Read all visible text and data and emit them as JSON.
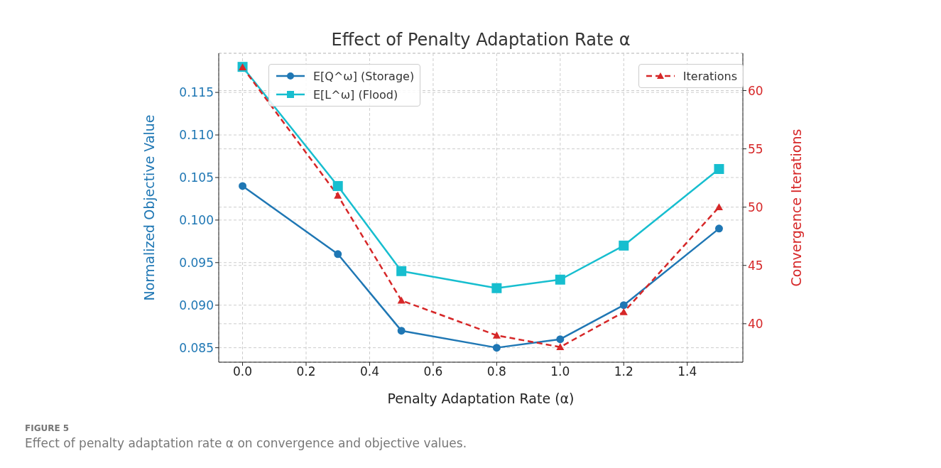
{
  "chart_data": {
    "type": "line",
    "title": "Effect of Penalty Adaptation Rate α",
    "xlabel": "Penalty Adaptation Rate (α)",
    "ylabel": "Normalized Objective Value",
    "y2label": "Convergence Iterations",
    "x": [
      0.0,
      0.3,
      0.5,
      0.8,
      1.0,
      1.2,
      1.5
    ],
    "series": [
      {
        "name": "E[Q^ω] (Storage)",
        "color": "#1f77b4",
        "marker": "circle",
        "line_style": "solid",
        "values": [
          0.104,
          0.096,
          0.087,
          0.085,
          0.086,
          0.09,
          0.099
        ]
      },
      {
        "name": "E[L^ω] (Flood)",
        "color": "#17becf",
        "marker": "square",
        "line_style": "solid",
        "values": [
          0.118,
          0.104,
          0.094,
          0.092,
          0.093,
          0.097,
          0.106
        ]
      },
      {
        "name": "Iterations",
        "color": "#d62728",
        "marker": "triangle",
        "line_style": "dashed",
        "axis": "y2",
        "values": [
          62,
          51,
          42,
          39,
          38,
          41,
          50
        ]
      }
    ],
    "xlim": [
      -0.075,
      1.575
    ],
    "xticks": [
      {
        "value": 0,
        "label": "0.0"
      },
      0.2,
      0.4,
      0.6,
      0.8,
      {
        "value": 1,
        "label": "1.0"
      },
      1.2,
      1.4
    ],
    "ylim": [
      0.0833,
      0.1196
    ],
    "yticks": [
      0.085,
      {
        "value": 0.09,
        "label": "0.090"
      },
      0.095,
      {
        "value": 0.1,
        "label": "0.100"
      },
      0.105,
      {
        "value": 0.11,
        "label": "0.110"
      },
      0.115
    ],
    "y2lim": [
      36.7,
      63.2
    ],
    "y2ticks": [
      40,
      45,
      50,
      55,
      60
    ],
    "grid": true,
    "legend": "top",
    "annotations": [
      "FIGURE 5",
      "Effect of penalty adaptation rate α on convergence and objective values."
    ]
  }
}
